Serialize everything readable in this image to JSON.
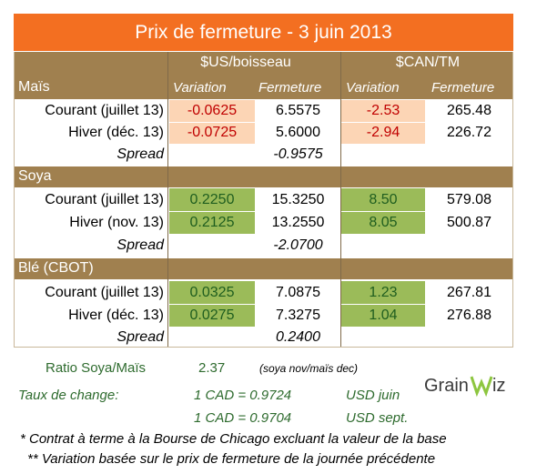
{
  "title": "Prix de fermeture - 3 juin 2013",
  "headers": {
    "us": "$US/boisseau",
    "can": "$CAN/TM",
    "variation": "Variation",
    "fermeture": "Fermeture"
  },
  "sections": [
    {
      "name": "Maïs",
      "rows": [
        {
          "label": "Courant (juillet 13)",
          "us_var": "-0.0625",
          "us_ferm": "6.5575",
          "can_var": "-2.53",
          "can_ferm": "265.48"
        },
        {
          "label": "Hiver (déc. 13)",
          "us_var": "-0.0725",
          "us_ferm": "5.6000",
          "can_var": "-2.94",
          "can_ferm": "226.72"
        }
      ],
      "spread_label": "Spread",
      "spread": "-0.9575"
    },
    {
      "name": "Soya",
      "rows": [
        {
          "label": "Courant (juillet 13)",
          "us_var": "0.2250",
          "us_ferm": "15.3250",
          "can_var": "8.50",
          "can_ferm": "579.08"
        },
        {
          "label": "Hiver (nov. 13)",
          "us_var": "0.2125",
          "us_ferm": "13.2550",
          "can_var": "8.05",
          "can_ferm": "500.87"
        }
      ],
      "spread_label": "Spread",
      "spread": "-2.0700"
    },
    {
      "name": "Blé (CBOT)",
      "rows": [
        {
          "label": "Courant (juillet 13)",
          "us_var": "0.0325",
          "us_ferm": "7.0875",
          "can_var": "1.23",
          "can_ferm": "267.81"
        },
        {
          "label": "Hiver (déc. 13)",
          "us_var": "0.0275",
          "us_ferm": "7.3275",
          "can_var": "1.04",
          "can_ferm": "276.88"
        }
      ],
      "spread_label": "Spread",
      "spread": "0.2400"
    }
  ],
  "ratio": {
    "label": "Ratio Soya/Maïs",
    "value": "2.37",
    "note": "(soya nov/maïs dec)"
  },
  "exchange": {
    "label": "Taux de change:",
    "rows": [
      {
        "rate": "1 CAD =  0.9724",
        "unit": "USD juin"
      },
      {
        "rate": "1 CAD =  0.9704",
        "unit": "USD sept."
      }
    ]
  },
  "logo": {
    "text": "GRAINWIZ"
  },
  "footnotes": [
    "* Contrat à terme à la Bourse de Chicago excluant la valeur de la base",
    "** Variation basée sur le prix de fermeture de la journée précédente"
  ],
  "colors": {
    "title_bg": "#f36f21",
    "section_bg": "#a0804f",
    "negative_bg": "#fcd5b5",
    "positive_bg": "#9bbb59",
    "negative_text": "#c00000"
  }
}
